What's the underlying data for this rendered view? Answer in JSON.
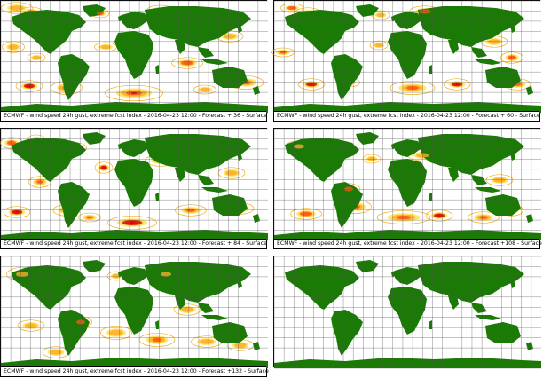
{
  "colors": {
    "land": "#1a7a05",
    "ocean": "#ffffff",
    "grid": "#555555",
    "contour_low": "#f0a000",
    "fill_low": "#ffe566",
    "fill_mid": "#ffb22a",
    "fill_high": "#ff5a1a",
    "fill_max": "#d40000"
  },
  "panels": [
    {
      "caption": "ECMWF - wind speed 24h gust, extreme fcst index - 2016-04-23 12:00 - Forecast + 36 - Surface",
      "has_field": true
    },
    {
      "caption": "ECMWF - wind speed 24h gust, extreme fcst index - 2016-04-23 12:00 - Forecast + 60 - Surface",
      "has_field": true
    },
    {
      "caption": "ECMWF - wind speed 24h gust, extreme fcst index - 2016-04-23 12:00 - Forecast + 84 - Surface",
      "has_field": true
    },
    {
      "caption": "ECMWF - wind speed 24h gust, extreme fcst index - 2016-04-23 12:00 - Forecast +108 - Surface",
      "has_field": true
    },
    {
      "caption": "ECMWF - wind speed 24h gust, extreme fcst index - 2016-04-23 12:00 - Forecast +132 - Surface",
      "has_field": true
    },
    {
      "caption": "",
      "has_field": false
    }
  ]
}
